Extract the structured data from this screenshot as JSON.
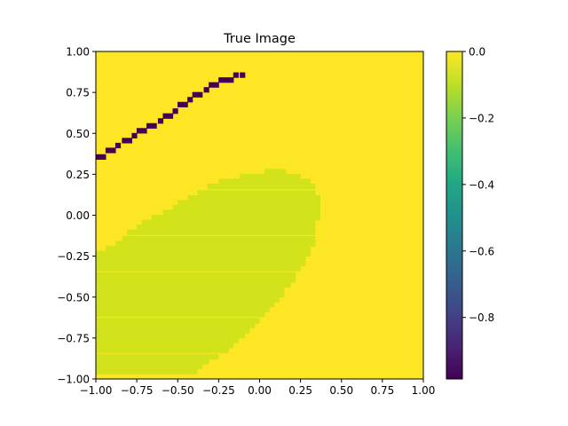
{
  "chart_data": {
    "type": "heatmap",
    "title": "True Image",
    "xlabel": "",
    "ylabel": "",
    "xlim": [
      -1.0,
      1.0
    ],
    "ylim": [
      -1.0,
      1.0
    ],
    "grid": false,
    "x_ticks": [
      "−1.00",
      "−0.75",
      "−0.50",
      "−0.25",
      "0.00",
      "0.25",
      "0.50",
      "0.75",
      "1.00"
    ],
    "y_ticks": [
      "1.00",
      "0.75",
      "0.50",
      "0.25",
      "0.00",
      "−0.25",
      "−0.50",
      "−0.75",
      "−1.00"
    ],
    "colormap": "viridis",
    "colorbar": {
      "min": -1.0,
      "max": 0.0,
      "ticks": [
        "0.0",
        "−0.2",
        "−0.4",
        "−0.6",
        "−0.8"
      ]
    },
    "background_value": 0.0,
    "grid_size": 64,
    "regions": [
      {
        "name": "blob",
        "value": -0.1,
        "color": "#d2e21b",
        "rows": [
          {
            "y": 0.25,
            "x0": 0.03,
            "x1": 0.13
          },
          {
            "y": 0.22,
            "x0": -0.12,
            "x1": 0.22
          },
          {
            "y": 0.19,
            "x0": -0.25,
            "x1": 0.28
          },
          {
            "y": 0.16,
            "x0": -0.32,
            "x1": 0.31
          },
          {
            "y": 0.12,
            "x0": -0.38,
            "x1": 0.31
          },
          {
            "y": 0.09,
            "x0": -0.44,
            "x1": 0.34
          },
          {
            "y": 0.06,
            "x0": -0.5,
            "x1": 0.34
          },
          {
            "y": 0.03,
            "x0": -0.53,
            "x1": 0.34
          },
          {
            "y": 0.0,
            "x0": -0.59,
            "x1": 0.34
          },
          {
            "y": -0.03,
            "x0": -0.66,
            "x1": 0.34
          },
          {
            "y": -0.06,
            "x0": -0.72,
            "x1": 0.31
          },
          {
            "y": -0.09,
            "x0": -0.75,
            "x1": 0.31
          },
          {
            "y": -0.12,
            "x0": -0.81,
            "x1": 0.31
          },
          {
            "y": -0.16,
            "x0": -0.84,
            "x1": 0.31
          },
          {
            "y": -0.19,
            "x0": -0.88,
            "x1": 0.31
          },
          {
            "y": -0.22,
            "x0": -0.94,
            "x1": 0.28
          },
          {
            "y": -0.25,
            "x0": -1.0,
            "x1": 0.28
          },
          {
            "y": -0.28,
            "x0": -1.0,
            "x1": 0.25
          },
          {
            "y": -0.31,
            "x0": -1.0,
            "x1": 0.25
          },
          {
            "y": -0.34,
            "x0": -1.0,
            "x1": 0.22
          },
          {
            "y": -0.38,
            "x0": -1.0,
            "x1": 0.19
          },
          {
            "y": -0.41,
            "x0": -1.0,
            "x1": 0.19
          },
          {
            "y": -0.44,
            "x0": -1.0,
            "x1": 0.16
          },
          {
            "y": -0.47,
            "x0": -1.0,
            "x1": 0.12
          },
          {
            "y": -0.5,
            "x0": -1.0,
            "x1": 0.12
          },
          {
            "y": -0.53,
            "x0": -1.0,
            "x1": 0.09
          },
          {
            "y": -0.56,
            "x0": -1.0,
            "x1": 0.06
          },
          {
            "y": -0.59,
            "x0": -1.0,
            "x1": 0.03
          },
          {
            "y": -0.62,
            "x0": -1.0,
            "x1": 0.0
          },
          {
            "y": -0.66,
            "x0": -1.0,
            "x1": -0.03
          },
          {
            "y": -0.69,
            "x0": -1.0,
            "x1": -0.06
          },
          {
            "y": -0.72,
            "x0": -1.0,
            "x1": -0.09
          },
          {
            "y": -0.75,
            "x0": -1.0,
            "x1": -0.12
          },
          {
            "y": -0.78,
            "x0": -1.0,
            "x1": -0.16
          },
          {
            "y": -0.81,
            "x0": -1.0,
            "x1": -0.19
          },
          {
            "y": -0.84,
            "x0": -1.0,
            "x1": -0.22
          },
          {
            "y": -0.88,
            "x0": -1.0,
            "x1": -0.28
          },
          {
            "y": -0.91,
            "x0": -1.0,
            "x1": -0.34
          },
          {
            "y": -0.94,
            "x0": -1.0,
            "x1": -0.38
          },
          {
            "y": -0.97,
            "x0": -1.0,
            "x1": -0.41
          }
        ]
      },
      {
        "name": "line",
        "value": -1.0,
        "color": "#440154",
        "cells": [
          [
            -1.0,
            0.34
          ],
          [
            -0.97,
            0.34
          ],
          [
            -0.94,
            0.38
          ],
          [
            -0.91,
            0.38
          ],
          [
            -0.88,
            0.41
          ],
          [
            -0.84,
            0.44
          ],
          [
            -0.81,
            0.44
          ],
          [
            -0.78,
            0.47
          ],
          [
            -0.75,
            0.5
          ],
          [
            -0.72,
            0.5
          ],
          [
            -0.69,
            0.53
          ],
          [
            -0.66,
            0.53
          ],
          [
            -0.62,
            0.56
          ],
          [
            -0.59,
            0.59
          ],
          [
            -0.56,
            0.59
          ],
          [
            -0.53,
            0.62
          ],
          [
            -0.5,
            0.66
          ],
          [
            -0.47,
            0.66
          ],
          [
            -0.44,
            0.69
          ],
          [
            -0.41,
            0.72
          ],
          [
            -0.38,
            0.72
          ],
          [
            -0.34,
            0.75
          ],
          [
            -0.31,
            0.78
          ],
          [
            -0.28,
            0.78
          ],
          [
            -0.25,
            0.81
          ],
          [
            -0.22,
            0.81
          ],
          [
            -0.19,
            0.81
          ],
          [
            -0.16,
            0.84
          ],
          [
            -0.12,
            0.84
          ]
        ]
      }
    ]
  }
}
